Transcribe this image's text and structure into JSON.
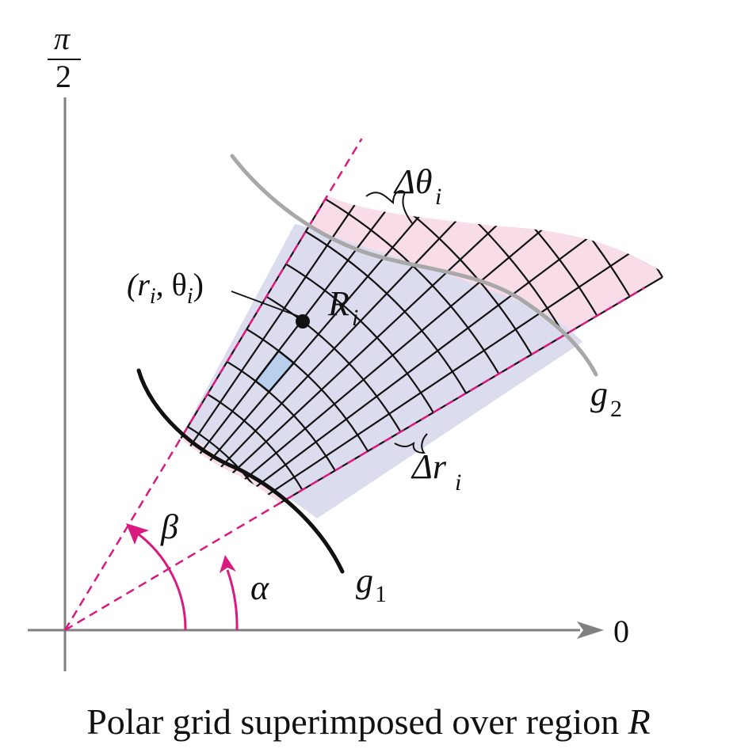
{
  "labels": {
    "pi_half_num": "π",
    "pi_half_den": "2",
    "zero": "0",
    "beta": "β",
    "alpha": "α",
    "g1_base": "g",
    "g1_sub": "1",
    "g2_base": "g",
    "g2_sub": "2",
    "delta_theta": "Δθ",
    "delta_theta_sub": "i",
    "delta_r": "Δr",
    "delta_r_sub": "i",
    "point_open": "(r",
    "point_sub1": "i",
    "point_mid": ", θ",
    "point_sub2": "i",
    "point_close": ")",
    "region_base": "R",
    "region_sub": "i"
  },
  "caption": {
    "text": "Polar grid superimposed over region ",
    "region": "R"
  },
  "colors": {
    "axis": "#808080",
    "ray": "#d81b7f",
    "region_fill": "#dcdcef",
    "partial_fill": "#f8dce8",
    "selected_cell": "#b8d0ec",
    "grid": "#111111",
    "curve_g1": "#111111",
    "curve_g2": "#a8a8a8"
  }
}
